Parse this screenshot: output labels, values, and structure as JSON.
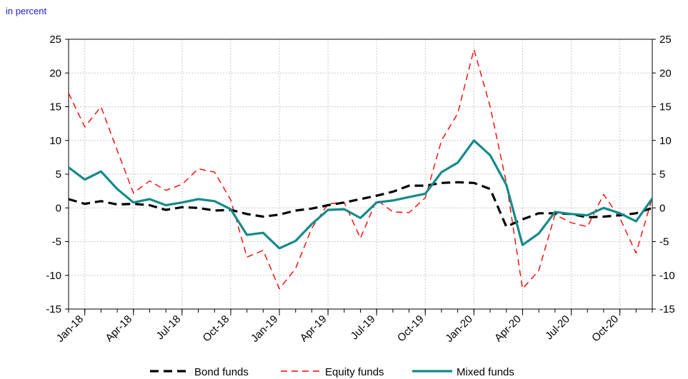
{
  "unit_label": "in percent",
  "colors": {
    "unit_label": "#1a1acc",
    "bond": "#000000",
    "equity": "#ff0000",
    "mixed": "#148a8a",
    "grid": "#c8c8c8"
  },
  "chart_data": {
    "type": "line",
    "ylim": [
      -15,
      25
    ],
    "yticks": [
      -15,
      -10,
      -5,
      0,
      5,
      10,
      15,
      20,
      25
    ],
    "y_axis_sides": "left-and-right",
    "grid": true,
    "legend_placement": "bottom-center",
    "x": [
      "Dec-17",
      "Jan-18",
      "Feb-18",
      "Mar-18",
      "Apr-18",
      "May-18",
      "Jun-18",
      "Jul-18",
      "Aug-18",
      "Sep-18",
      "Oct-18",
      "Nov-18",
      "Dec-18",
      "Jan-19",
      "Feb-19",
      "Mar-19",
      "Apr-19",
      "May-19",
      "Jun-19",
      "Jul-19",
      "Aug-19",
      "Sep-19",
      "Oct-19",
      "Nov-19",
      "Dec-19",
      "Jan-20",
      "Feb-20",
      "Mar-20",
      "Apr-20",
      "May-20",
      "Jun-20",
      "Jul-20",
      "Aug-20",
      "Sep-20",
      "Oct-20",
      "Nov-20",
      "Dec-20"
    ],
    "xtick_labels": [
      "Jan-18",
      "Apr-18",
      "Jul-18",
      "Oct-18",
      "Jan-19",
      "Apr-19",
      "Jul-19",
      "Oct-19",
      "Jan-20",
      "Apr-20",
      "Jul-20",
      "Oct-20"
    ],
    "xtick_months": [
      "Jan-18",
      "Apr-18",
      "Jul-18",
      "Oct-18",
      "Jan-19",
      "Apr-19",
      "Jul-19",
      "Oct-19",
      "Jan-20",
      "Apr-20",
      "Jul-20",
      "Oct-20"
    ],
    "series": [
      {
        "name": "Bond funds",
        "style": "bold-dashed",
        "values": [
          1.3,
          0.6,
          1.0,
          0.5,
          0.6,
          0.4,
          -0.3,
          0.1,
          0.0,
          -0.4,
          -0.3,
          -0.9,
          -1.3,
          -1.0,
          -0.4,
          -0.1,
          0.4,
          0.8,
          1.3,
          1.8,
          2.4,
          3.3,
          3.3,
          3.7,
          3.8,
          3.7,
          2.8,
          -2.8,
          -1.7,
          -0.8,
          -0.8,
          -0.9,
          -1.4,
          -1.3,
          -1.1,
          -0.8,
          0.0
        ]
      },
      {
        "name": "Equity funds",
        "style": "thin-dashed",
        "values": [
          17.0,
          12.0,
          15.0,
          8.5,
          2.2,
          4.0,
          2.6,
          3.5,
          5.8,
          5.3,
          1.2,
          -7.3,
          -6.3,
          -12.0,
          -9.0,
          -3.0,
          0.6,
          0.8,
          -4.5,
          1.2,
          -0.6,
          -0.7,
          1.5,
          10.0,
          14.0,
          23.5,
          15.0,
          3.7,
          -12.0,
          -9.3,
          -1.0,
          -2.2,
          -2.8,
          2.0,
          -1.5,
          -6.7,
          1.5
        ]
      },
      {
        "name": "Mixed funds",
        "style": "solid",
        "values": [
          6.0,
          4.2,
          5.4,
          2.8,
          0.8,
          1.3,
          0.4,
          0.8,
          1.3,
          1.0,
          -0.2,
          -4.0,
          -3.7,
          -6.0,
          -4.9,
          -2.4,
          -0.3,
          -0.2,
          -1.5,
          0.8,
          1.1,
          1.6,
          2.1,
          5.3,
          6.7,
          10.0,
          7.8,
          3.4,
          -5.5,
          -3.8,
          -0.6,
          -0.9,
          -1.1,
          0.0,
          -0.8,
          -2.0,
          1.4
        ]
      }
    ]
  }
}
